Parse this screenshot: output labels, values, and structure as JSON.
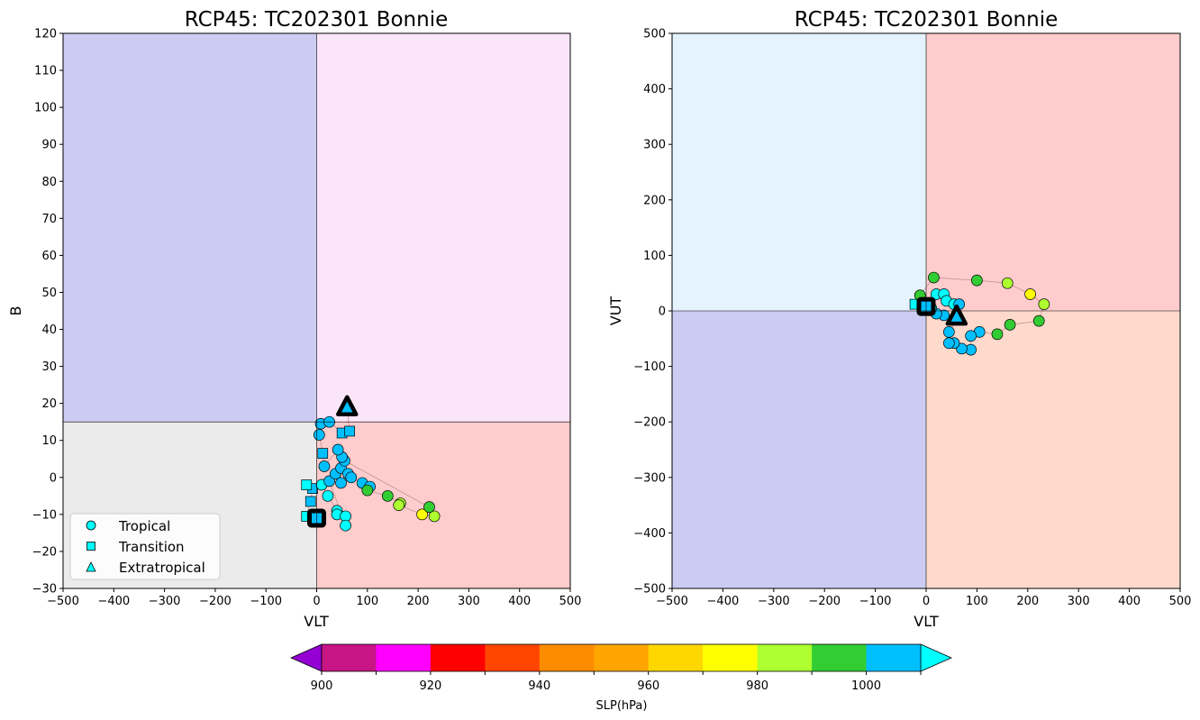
{
  "chart_data": [
    {
      "type": "scatter",
      "title": "RCP45: TC202301 Bonnie",
      "xlabel": "VLT",
      "ylabel": "B",
      "xlim": [
        -500,
        500
      ],
      "ylim": [
        -30,
        120
      ],
      "xticks": [
        -500,
        -400,
        -300,
        -200,
        -100,
        0,
        100,
        200,
        300,
        400,
        500
      ],
      "yticks": [
        -30,
        -20,
        -10,
        0,
        10,
        20,
        30,
        40,
        50,
        60,
        70,
        80,
        90,
        100,
        110,
        120
      ],
      "threshold_x": 0,
      "threshold_y": 15,
      "quadrant_colors": {
        "upper_left": "#ccccf2",
        "upper_right": "#fbe5f9",
        "lower_left": "#ebebeb",
        "lower_right": "#fecccc"
      },
      "legend": {
        "placement": "lower-left",
        "entries": [
          {
            "label": "Tropical",
            "marker": "circle"
          },
          {
            "label": "Transition",
            "marker": "square"
          },
          {
            "label": "Extratropical",
            "marker": "triangle"
          }
        ]
      },
      "start_point": {
        "x": 0,
        "y": -11,
        "marker": "square"
      },
      "end_point": {
        "x": 60,
        "y": 19,
        "marker": "triangle"
      },
      "track": [
        {
          "x": 0,
          "y": -11,
          "slp": 1010,
          "phase": "Transition"
        },
        {
          "x": -20,
          "y": -10.5,
          "slp": 1010,
          "phase": "Transition"
        },
        {
          "x": -12,
          "y": -6.5,
          "slp": 1005,
          "phase": "Transition"
        },
        {
          "x": -8,
          "y": -3,
          "slp": 1005,
          "phase": "Transition"
        },
        {
          "x": -20,
          "y": -2,
          "slp": 1010,
          "phase": "Transition"
        },
        {
          "x": 10,
          "y": -2,
          "slp": 1010,
          "phase": "Tropical"
        },
        {
          "x": 22,
          "y": -5,
          "slp": 1010,
          "phase": "Tropical"
        },
        {
          "x": 40,
          "y": -9,
          "slp": 1010,
          "phase": "Tropical"
        },
        {
          "x": 40,
          "y": -10,
          "slp": 1010,
          "phase": "Tropical"
        },
        {
          "x": 57,
          "y": -10.5,
          "slp": 1010,
          "phase": "Tropical"
        },
        {
          "x": 57,
          "y": -13,
          "slp": 1010,
          "phase": "Tropical"
        },
        {
          "x": 25,
          "y": -1,
          "slp": 1005,
          "phase": "Tropical"
        },
        {
          "x": 37,
          "y": 1,
          "slp": 1005,
          "phase": "Tropical"
        },
        {
          "x": 48,
          "y": -1.5,
          "slp": 1005,
          "phase": "Tropical"
        },
        {
          "x": 48,
          "y": 2.5,
          "slp": 1005,
          "phase": "Tropical"
        },
        {
          "x": 62,
          "y": 1,
          "slp": 1005,
          "phase": "Tropical"
        },
        {
          "x": 68,
          "y": 0,
          "slp": 1005,
          "phase": "Tropical"
        },
        {
          "x": 90,
          "y": -1.5,
          "slp": 1005,
          "phase": "Tropical"
        },
        {
          "x": 105,
          "y": -2.5,
          "slp": 1005,
          "phase": "Tropical"
        },
        {
          "x": 100,
          "y": -3.5,
          "slp": 995,
          "phase": "Tropical"
        },
        {
          "x": 140,
          "y": -5,
          "slp": 995,
          "phase": "Tropical"
        },
        {
          "x": 165,
          "y": -7,
          "slp": 985,
          "phase": "Tropical"
        },
        {
          "x": 162,
          "y": -7.5,
          "slp": 985,
          "phase": "Tropical"
        },
        {
          "x": 208,
          "y": -10,
          "slp": 975,
          "phase": "Tropical"
        },
        {
          "x": 232,
          "y": -10.5,
          "slp": 985,
          "phase": "Tropical"
        },
        {
          "x": 222,
          "y": -8,
          "slp": 995,
          "phase": "Tropical"
        },
        {
          "x": 55,
          "y": 4.5,
          "slp": 1005,
          "phase": "Tropical"
        },
        {
          "x": 50,
          "y": 5.5,
          "slp": 1005,
          "phase": "Tropical"
        },
        {
          "x": 42,
          "y": 7.5,
          "slp": 1005,
          "phase": "Tropical"
        },
        {
          "x": 15,
          "y": 3,
          "slp": 1005,
          "phase": "Tropical"
        },
        {
          "x": 12,
          "y": 6.5,
          "slp": 1005,
          "phase": "Transition"
        },
        {
          "x": 5,
          "y": 11.5,
          "slp": 1005,
          "phase": "Tropical"
        },
        {
          "x": 8,
          "y": 14.5,
          "slp": 1005,
          "phase": "Tropical"
        },
        {
          "x": 25,
          "y": 15,
          "slp": 1005,
          "phase": "Tropical"
        },
        {
          "x": 50,
          "y": 12,
          "slp": 1005,
          "phase": "Transition"
        },
        {
          "x": 65,
          "y": 12.5,
          "slp": 1005,
          "phase": "Transition"
        },
        {
          "x": 60,
          "y": 19,
          "slp": 1005,
          "phase": "Extratropical"
        }
      ]
    },
    {
      "type": "scatter",
      "title": "RCP45: TC202301 Bonnie",
      "xlabel": "VLT",
      "ylabel": "VUT",
      "xlim": [
        -500,
        500
      ],
      "ylim": [
        -500,
        500
      ],
      "xticks": [
        -500,
        -400,
        -300,
        -200,
        -100,
        0,
        100,
        200,
        300,
        400,
        500
      ],
      "yticks": [
        -500,
        -400,
        -300,
        -200,
        -100,
        0,
        100,
        200,
        300,
        400,
        500
      ],
      "threshold_x": 0,
      "threshold_y": 0,
      "quadrant_colors": {
        "upper_left": "#e5f3fe",
        "upper_right": "#fecccc",
        "lower_left": "#ccccf2",
        "lower_right": "#fedacc"
      },
      "start_point": {
        "x": 0,
        "y": 8,
        "marker": "square"
      },
      "end_point": {
        "x": 60,
        "y": -10,
        "marker": "triangle"
      },
      "track": [
        {
          "x": 0,
          "y": 8,
          "slp": 1010,
          "phase": "Transition"
        },
        {
          "x": -22,
          "y": 12,
          "slp": 1010,
          "phase": "Transition"
        },
        {
          "x": -8,
          "y": 14,
          "slp": 1005,
          "phase": "Transition"
        },
        {
          "x": -12,
          "y": 28,
          "slp": 995,
          "phase": "Tropical"
        },
        {
          "x": 15,
          "y": 60,
          "slp": 995,
          "phase": "Tropical"
        },
        {
          "x": 100,
          "y": 55,
          "slp": 995,
          "phase": "Tropical"
        },
        {
          "x": 160,
          "y": 50,
          "slp": 985,
          "phase": "Tropical"
        },
        {
          "x": 205,
          "y": 30,
          "slp": 975,
          "phase": "Tropical"
        },
        {
          "x": 232,
          "y": 12,
          "slp": 985,
          "phase": "Tropical"
        },
        {
          "x": 222,
          "y": -18,
          "slp": 995,
          "phase": "Tropical"
        },
        {
          "x": 165,
          "y": -25,
          "slp": 995,
          "phase": "Tropical"
        },
        {
          "x": 140,
          "y": -42,
          "slp": 995,
          "phase": "Tropical"
        },
        {
          "x": 105,
          "y": -38,
          "slp": 1005,
          "phase": "Tropical"
        },
        {
          "x": 88,
          "y": -45,
          "slp": 1005,
          "phase": "Tropical"
        },
        {
          "x": 88,
          "y": -70,
          "slp": 1005,
          "phase": "Tropical"
        },
        {
          "x": 70,
          "y": -68,
          "slp": 1005,
          "phase": "Tropical"
        },
        {
          "x": 55,
          "y": -58,
          "slp": 1005,
          "phase": "Tropical"
        },
        {
          "x": 45,
          "y": -58,
          "slp": 1005,
          "phase": "Tropical"
        },
        {
          "x": 45,
          "y": -38,
          "slp": 1005,
          "phase": "Tropical"
        },
        {
          "x": 60,
          "y": -15,
          "slp": 1005,
          "phase": "Tropical"
        },
        {
          "x": 35,
          "y": -8,
          "slp": 1005,
          "phase": "Tropical"
        },
        {
          "x": 20,
          "y": -5,
          "slp": 1005,
          "phase": "Tropical"
        },
        {
          "x": 10,
          "y": 5,
          "slp": 1010,
          "phase": "Tropical"
        },
        {
          "x": 20,
          "y": 30,
          "slp": 1010,
          "phase": "Tropical"
        },
        {
          "x": 35,
          "y": 30,
          "slp": 1010,
          "phase": "Tropical"
        },
        {
          "x": 40,
          "y": 18,
          "slp": 1010,
          "phase": "Tropical"
        },
        {
          "x": 55,
          "y": 12,
          "slp": 1010,
          "phase": "Tropical"
        },
        {
          "x": 65,
          "y": 12,
          "slp": 1005,
          "phase": "Tropical"
        },
        {
          "x": 60,
          "y": -10,
          "slp": 1005,
          "phase": "Extratropical"
        }
      ]
    }
  ],
  "colorbar": {
    "label": "SLP(hPa)",
    "ticks": [
      900,
      920,
      940,
      960,
      980,
      1000
    ],
    "boundaries": [
      900,
      910,
      920,
      930,
      940,
      950,
      960,
      970,
      980,
      990,
      1000,
      1010
    ],
    "colors": [
      "#c71585",
      "#ff00ff",
      "#ff0000",
      "#ff4500",
      "#ff8c00",
      "#ffa500",
      "#ffd700",
      "#ffff00",
      "#adff2f",
      "#32cd32",
      "#00bfff"
    ],
    "under_color": "#9400d3",
    "over_color": "#00ffff"
  }
}
